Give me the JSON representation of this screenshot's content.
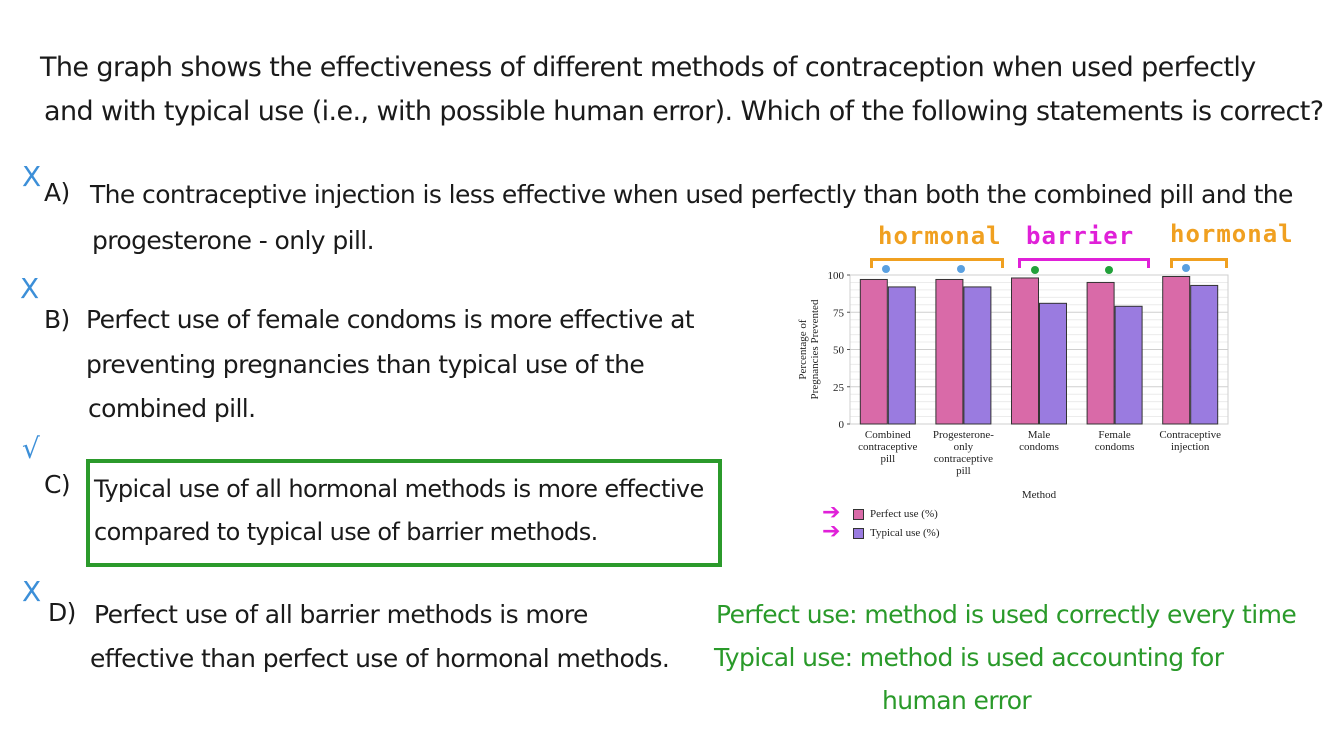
{
  "question": {
    "line1": "The graph shows the effectiveness of different methods of contraception when used perfectly",
    "line2": "and with typical use  (i.e.,  with possible human error). Which of the following statements is correct?"
  },
  "options": [
    {
      "letter": "A)",
      "mark": "X",
      "lines": [
        "The contraceptive injection is less effective when used perfectly than both the combined pill and the",
        "progesterone - only pill."
      ]
    },
    {
      "letter": "B)",
      "mark": "X",
      "lines": [
        "Perfect use of female condoms is more effective at",
        "preventing pregnancies than typical use of the",
        "combined pill."
      ]
    },
    {
      "letter": "C)",
      "mark": "√",
      "lines": [
        "Typical use of all hormonal methods is more effective",
        "compared to typical use of barrier methods."
      ]
    },
    {
      "letter": "D)",
      "mark": "X",
      "lines": [
        "Perfect use of all barrier methods is more",
        "effective than perfect use of hormonal methods."
      ]
    }
  ],
  "definitions": {
    "perfect": "Perfect use: method is used correctly every time",
    "typical1": "Typical use: method is used accounting for",
    "typical2": "human error"
  },
  "annotations": {
    "hormonal_left": "hormonal",
    "barrier": "barrier",
    "hormonal_right": "hormonal"
  },
  "colors": {
    "perfect": "#d96aa8",
    "typical": "#9a7be0",
    "correct_box": "#2b9a2b",
    "hormonal": "#f0a020",
    "barrier": "#e020d8",
    "mark": "#3c8fd8",
    "dot_blue": "#5aa0e0",
    "dot_green": "#22a03a"
  },
  "chart_data": {
    "type": "bar",
    "categories": [
      [
        "Combined",
        "contraceptive",
        "pill"
      ],
      [
        "Progesterone-",
        "only",
        "contraceptive",
        "pill"
      ],
      [
        "Male",
        "condoms"
      ],
      [
        "Female",
        "condoms"
      ],
      [
        "Contraceptive",
        "injection"
      ]
    ],
    "series": [
      {
        "name": "Perfect use (%)",
        "values": [
          97,
          97,
          98,
          95,
          99
        ]
      },
      {
        "name": "Typical use (%)",
        "values": [
          92,
          92,
          81,
          79,
          93
        ]
      }
    ],
    "title": "",
    "xlabel": "Method",
    "ylabel": "Percentage of Pregnancies Prevented",
    "ylabel_lines": [
      "Percentage of",
      "Pregnancies Prevented"
    ],
    "ylim": [
      0,
      100
    ],
    "yticks": [
      0,
      25,
      50,
      75,
      100
    ],
    "grid": true,
    "legend_position": "bottom-left"
  }
}
